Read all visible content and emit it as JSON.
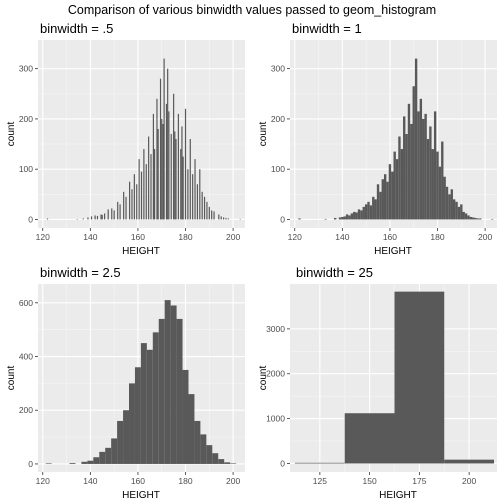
{
  "title": "Comparison of various binwidth values passed to geom_histogram",
  "colors": {
    "panel_bg": "#ebebeb",
    "grid_major": "#ffffff",
    "grid_minor": "#f5f5f5",
    "bar_fill": "#595959",
    "tick_text": "#4d4d4d"
  },
  "chart_data": [
    {
      "type": "bar",
      "subtitle": "binwidth = .5",
      "xlabel": "HEIGHT",
      "ylabel": "count",
      "xlim": [
        118,
        205
      ],
      "ylim": [
        -17,
        357
      ],
      "xticks": [
        120,
        140,
        160,
        180,
        200
      ],
      "yticks": [
        0,
        100,
        200,
        300
      ],
      "binwidth": 0.5,
      "grid": true,
      "bins": [
        [
          122,
          2
        ],
        [
          134.5,
          1
        ],
        [
          137,
          2
        ],
        [
          139,
          4
        ],
        [
          140.5,
          6
        ],
        [
          142,
          8
        ],
        [
          143,
          7
        ],
        [
          144.5,
          10
        ],
        [
          145,
          9
        ],
        [
          146,
          12
        ],
        [
          147.5,
          20
        ],
        [
          149,
          22
        ],
        [
          150,
          18
        ],
        [
          151.5,
          35
        ],
        [
          152.5,
          30
        ],
        [
          154,
          55
        ],
        [
          155,
          45
        ],
        [
          156.5,
          75
        ],
        [
          157.5,
          60
        ],
        [
          158.5,
          90
        ],
        [
          159.5,
          70
        ],
        [
          160.5,
          120
        ],
        [
          161.5,
          95
        ],
        [
          162.5,
          140
        ],
        [
          163.5,
          110
        ],
        [
          164.5,
          165
        ],
        [
          165.5,
          130
        ],
        [
          166.5,
          210
        ],
        [
          167,
          140
        ],
        [
          168,
          240
        ],
        [
          168.5,
          180
        ],
        [
          169.5,
          280
        ],
        [
          170,
          200
        ],
        [
          170.5,
          190
        ],
        [
          171,
          320
        ],
        [
          172,
          230
        ],
        [
          172.5,
          300
        ],
        [
          173,
          215
        ],
        [
          174,
          170
        ],
        [
          175,
          250
        ],
        [
          175.5,
          175
        ],
        [
          176,
          160
        ],
        [
          177,
          210
        ],
        [
          178,
          140
        ],
        [
          178.5,
          185
        ],
        [
          179,
          125
        ],
        [
          180,
          220
        ],
        [
          181,
          100
        ],
        [
          182,
          160
        ],
        [
          183,
          90
        ],
        [
          184,
          120
        ],
        [
          185,
          70
        ],
        [
          186,
          100
        ],
        [
          187,
          55
        ],
        [
          188,
          45
        ],
        [
          189,
          35
        ],
        [
          190,
          25
        ],
        [
          191,
          18
        ],
        [
          192,
          16
        ],
        [
          194,
          10
        ],
        [
          195,
          6
        ],
        [
          196,
          4
        ],
        [
          197,
          3
        ],
        [
          198,
          2
        ],
        [
          203,
          1
        ]
      ]
    },
    {
      "type": "bar",
      "subtitle": "binwidth = 1",
      "xlabel": "HEIGHT",
      "ylabel": "count",
      "xlim": [
        118,
        205
      ],
      "ylim": [
        -17,
        357
      ],
      "xticks": [
        120,
        140,
        160,
        180,
        200
      ],
      "yticks": [
        0,
        100,
        200,
        300
      ],
      "binwidth": 1,
      "grid": true,
      "bins": [
        [
          122,
          2
        ],
        [
          133,
          1
        ],
        [
          137,
          3
        ],
        [
          139,
          4
        ],
        [
          140,
          5
        ],
        [
          141,
          6
        ],
        [
          142,
          10
        ],
        [
          143,
          8
        ],
        [
          144,
          12
        ],
        [
          145,
          15
        ],
        [
          146,
          14
        ],
        [
          147,
          20
        ],
        [
          148,
          18
        ],
        [
          149,
          25
        ],
        [
          150,
          30
        ],
        [
          151,
          35
        ],
        [
          152,
          28
        ],
        [
          153,
          45
        ],
        [
          154,
          40
        ],
        [
          155,
          70
        ],
        [
          156,
          55
        ],
        [
          157,
          80
        ],
        [
          158,
          90
        ],
        [
          159,
          75
        ],
        [
          160,
          110
        ],
        [
          161,
          95
        ],
        [
          162,
          135
        ],
        [
          163,
          120
        ],
        [
          164,
          165
        ],
        [
          165,
          140
        ],
        [
          166,
          205
        ],
        [
          167,
          170
        ],
        [
          168,
          230
        ],
        [
          169,
          190
        ],
        [
          170,
          265
        ],
        [
          171,
          320
        ],
        [
          172,
          215
        ],
        [
          173,
          240
        ],
        [
          174,
          200
        ],
        [
          175,
          210
        ],
        [
          176,
          160
        ],
        [
          177,
          185
        ],
        [
          178,
          140
        ],
        [
          179,
          215
        ],
        [
          180,
          135
        ],
        [
          181,
          105
        ],
        [
          182,
          155
        ],
        [
          183,
          85
        ],
        [
          184,
          65
        ],
        [
          185,
          50
        ],
        [
          186,
          60
        ],
        [
          187,
          40
        ],
        [
          188,
          35
        ],
        [
          189,
          25
        ],
        [
          190,
          30
        ],
        [
          191,
          15
        ],
        [
          192,
          12
        ],
        [
          193,
          8
        ],
        [
          194,
          5
        ],
        [
          195,
          4
        ],
        [
          196,
          3
        ],
        [
          197,
          2
        ],
        [
          198,
          2
        ],
        [
          203,
          1
        ]
      ]
    },
    {
      "type": "bar",
      "subtitle": "binwidth = 2.5",
      "xlabel": "HEIGHT",
      "ylabel": "count",
      "xlim": [
        118,
        205
      ],
      "ylim": [
        -30,
        670
      ],
      "xticks": [
        120,
        140,
        160,
        180,
        200
      ],
      "yticks": [
        0,
        200,
        400,
        600
      ],
      "binwidth": 2.5,
      "grid": true,
      "bins": [
        [
          122.5,
          2
        ],
        [
          132.5,
          3
        ],
        [
          137.5,
          8
        ],
        [
          140,
          12
        ],
        [
          142.5,
          25
        ],
        [
          145,
          45
        ],
        [
          147.5,
          60
        ],
        [
          150,
          95
        ],
        [
          152.5,
          160
        ],
        [
          155,
          200
        ],
        [
          157.5,
          300
        ],
        [
          160,
          360
        ],
        [
          162.5,
          450
        ],
        [
          165,
          425
        ],
        [
          167.5,
          490
        ],
        [
          170,
          540
        ],
        [
          172.5,
          610
        ],
        [
          175,
          590
        ],
        [
          177.5,
          540
        ],
        [
          180,
          350
        ],
        [
          182.5,
          260
        ],
        [
          185,
          160
        ],
        [
          187.5,
          110
        ],
        [
          190,
          70
        ],
        [
          192.5,
          40
        ],
        [
          195,
          18
        ],
        [
          197.5,
          6
        ],
        [
          200,
          2
        ]
      ]
    },
    {
      "type": "bar",
      "subtitle": "binwidth = 25",
      "xlabel": "HEIGHT",
      "ylabel": "count",
      "xlim": [
        110,
        214
      ],
      "ylim": [
        -190,
        4000
      ],
      "xticks": [
        125,
        150,
        175,
        200
      ],
      "yticks": [
        0,
        1000,
        2000,
        3000
      ],
      "binwidth": 25,
      "grid": true,
      "bins": [
        [
          125,
          15
        ],
        [
          150,
          1120
        ],
        [
          175,
          3830
        ],
        [
          200,
          85
        ]
      ]
    }
  ]
}
